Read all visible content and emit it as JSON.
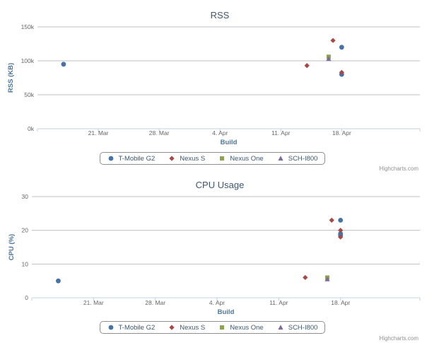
{
  "series_style": [
    {
      "name": "T-Mobile G2",
      "color": "#4572A7",
      "symbol": "circle"
    },
    {
      "name": "Nexus S",
      "color": "#AA4643",
      "symbol": "diamond"
    },
    {
      "name": "Nexus One",
      "color": "#89A54E",
      "symbol": "square"
    },
    {
      "name": "SCH-I800",
      "color": "#80699B",
      "symbol": "triangle"
    }
  ],
  "chart_data": [
    {
      "type": "scatter",
      "title": "RSS",
      "xlabel": "Build",
      "ylabel": "RSS (KB)",
      "x_ticks": [
        "21. Mar",
        "28. Mar",
        "4. Apr",
        "11. Apr",
        "18. Apr"
      ],
      "y_ticks": [
        "0k",
        "50k",
        "100k",
        "150k"
      ],
      "xlim": [
        "2011-03-14",
        "2011-04-27"
      ],
      "ylim": [
        0,
        150000
      ],
      "legend": "bottom-center",
      "credits": "Highcharts.com",
      "series": [
        {
          "name": "T-Mobile G2",
          "points": [
            [
              "2011-03-17",
              95000
            ],
            [
              "2011-04-18",
              120000
            ],
            [
              "2011-04-18",
              80000
            ]
          ]
        },
        {
          "name": "Nexus S",
          "points": [
            [
              "2011-04-14",
              93000
            ],
            [
              "2011-04-17",
              130000
            ],
            [
              "2011-04-18",
              83000
            ]
          ]
        },
        {
          "name": "Nexus One",
          "points": [
            [
              "2011-04-16.5",
              106000
            ]
          ]
        },
        {
          "name": "SCH-I800",
          "points": [
            [
              "2011-04-16.5",
              103000
            ]
          ]
        }
      ]
    },
    {
      "type": "scatter",
      "title": "CPU Usage",
      "xlabel": "Build",
      "ylabel": "CPU (%)",
      "x_ticks": [
        "21. Mar",
        "28. Mar",
        "4. Apr",
        "11. Apr",
        "18. Apr"
      ],
      "y_ticks": [
        "0",
        "10",
        "20",
        "30"
      ],
      "xlim": [
        "2011-03-14",
        "2011-04-27"
      ],
      "ylim": [
        0,
        30
      ],
      "legend": "bottom-center",
      "credits": "Highcharts.com",
      "series": [
        {
          "name": "T-Mobile G2",
          "points": [
            [
              "2011-03-17",
              5
            ],
            [
              "2011-04-18",
              23
            ],
            [
              "2011-04-18",
              19
            ],
            [
              "2011-04-18",
              18.5
            ]
          ]
        },
        {
          "name": "Nexus S",
          "points": [
            [
              "2011-04-14",
              6
            ],
            [
              "2011-04-17",
              23
            ],
            [
              "2011-04-18",
              20
            ],
            [
              "2011-04-18",
              18
            ]
          ]
        },
        {
          "name": "Nexus One",
          "points": [
            [
              "2011-04-16.5",
              6
            ]
          ]
        },
        {
          "name": "SCH-I800",
          "points": [
            [
              "2011-04-16.5",
              5.5
            ]
          ]
        }
      ]
    }
  ]
}
